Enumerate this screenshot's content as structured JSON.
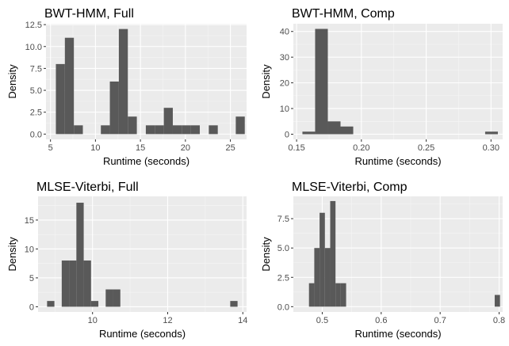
{
  "figure": {
    "background": "#ffffff",
    "panel_background": "#ebebeb",
    "grid_major": "#ffffff",
    "grid_minor": "#f5f5f5",
    "bar_color": "#595959",
    "tick_label_color": "#4d4d4d"
  },
  "chart_data": [
    {
      "type": "bar",
      "title": "BWT-HMM, Full",
      "xlabel": "Runtime (seconds)",
      "ylabel": "Density",
      "grid": true,
      "xlim": [
        4.5,
        26.8
      ],
      "ylim": [
        -0.6,
        12.6
      ],
      "xticks": [
        5,
        10,
        15,
        20,
        25
      ],
      "xtick_labels": [
        "5",
        "10",
        "15",
        "20",
        "25"
      ],
      "yticks": [
        0,
        2.5,
        5,
        7.5,
        10,
        12.5
      ],
      "ytick_labels": [
        "0.0",
        "2.5",
        "5.0",
        "7.5",
        "10.0",
        "12.5"
      ],
      "bins": [
        {
          "x0": 5.6,
          "x1": 6.6,
          "value": 8
        },
        {
          "x0": 6.6,
          "x1": 7.6,
          "value": 11
        },
        {
          "x0": 7.6,
          "x1": 8.6,
          "value": 1
        },
        {
          "x0": 10.6,
          "x1": 11.6,
          "value": 1
        },
        {
          "x0": 11.6,
          "x1": 12.6,
          "value": 6
        },
        {
          "x0": 12.6,
          "x1": 13.6,
          "value": 12
        },
        {
          "x0": 13.6,
          "x1": 14.6,
          "value": 2
        },
        {
          "x0": 15.6,
          "x1": 16.6,
          "value": 1
        },
        {
          "x0": 16.6,
          "x1": 17.6,
          "value": 1
        },
        {
          "x0": 17.6,
          "x1": 18.6,
          "value": 3
        },
        {
          "x0": 18.6,
          "x1": 19.6,
          "value": 1
        },
        {
          "x0": 19.6,
          "x1": 20.6,
          "value": 1
        },
        {
          "x0": 20.6,
          "x1": 21.6,
          "value": 1
        },
        {
          "x0": 22.6,
          "x1": 23.6,
          "value": 1
        },
        {
          "x0": 25.6,
          "x1": 26.6,
          "value": 2
        }
      ]
    },
    {
      "type": "bar",
      "title": "BWT-HMM, Comp",
      "xlabel": "Runtime (seconds)",
      "ylabel": "Density",
      "grid": true,
      "xlim": [
        0.1475,
        0.309
      ],
      "ylim": [
        -2,
        43
      ],
      "xticks": [
        0.15,
        0.2,
        0.25,
        0.3
      ],
      "xtick_labels": [
        "0.15",
        "0.20",
        "0.25",
        "0.30"
      ],
      "yticks": [
        0,
        10,
        20,
        30,
        40
      ],
      "ytick_labels": [
        "0",
        "10",
        "20",
        "30",
        "40"
      ],
      "bins": [
        {
          "x0": 0.1545,
          "x1": 0.1643,
          "value": 1
        },
        {
          "x0": 0.1643,
          "x1": 0.1741,
          "value": 41
        },
        {
          "x0": 0.1741,
          "x1": 0.1839,
          "value": 5
        },
        {
          "x0": 0.1839,
          "x1": 0.1937,
          "value": 3
        },
        {
          "x0": 0.2955,
          "x1": 0.3053,
          "value": 1
        }
      ]
    },
    {
      "type": "bar",
      "title": "MLSE-Viterbi, Full",
      "xlabel": "Runtime (seconds)",
      "ylabel": "Density",
      "grid": true,
      "xlim": [
        8.55,
        14.1
      ],
      "ylim": [
        -0.9,
        19.1
      ],
      "xticks": [
        10,
        12,
        14
      ],
      "xtick_labels": [
        "10",
        "12",
        "14"
      ],
      "yticks": [
        0,
        5,
        10,
        15
      ],
      "ytick_labels": [
        "0",
        "5",
        "10",
        "15"
      ],
      "bins": [
        {
          "x0": 8.79,
          "x1": 8.985,
          "value": 1
        },
        {
          "x0": 9.18,
          "x1": 9.375,
          "value": 8
        },
        {
          "x0": 9.375,
          "x1": 9.57,
          "value": 8
        },
        {
          "x0": 9.57,
          "x1": 9.765,
          "value": 18
        },
        {
          "x0": 9.765,
          "x1": 9.96,
          "value": 8
        },
        {
          "x0": 9.96,
          "x1": 10.155,
          "value": 1
        },
        {
          "x0": 10.35,
          "x1": 10.545,
          "value": 3
        },
        {
          "x0": 10.545,
          "x1": 10.74,
          "value": 3
        },
        {
          "x0": 13.665,
          "x1": 13.86,
          "value": 1
        }
      ]
    },
    {
      "type": "bar",
      "title": "MLSE-Viterbi, Comp",
      "xlabel": "Runtime (seconds)",
      "ylabel": "Density",
      "grid": true,
      "xlim": [
        0.451,
        0.806
      ],
      "ylim": [
        -0.45,
        9.4
      ],
      "xticks": [
        0.5,
        0.6,
        0.7,
        0.8
      ],
      "xtick_labels": [
        "0.5",
        "0.6",
        "0.7",
        "0.8"
      ],
      "yticks": [
        0,
        2.5,
        5,
        7.5
      ],
      "ytick_labels": [
        "0.0",
        "2.5",
        "5.0",
        "7.5"
      ],
      "bins": [
        {
          "x0": 0.4775,
          "x1": 0.4865,
          "value": 2
        },
        {
          "x0": 0.4865,
          "x1": 0.4955,
          "value": 5
        },
        {
          "x0": 0.4955,
          "x1": 0.5045,
          "value": 8
        },
        {
          "x0": 0.5045,
          "x1": 0.5135,
          "value": 5
        },
        {
          "x0": 0.5135,
          "x1": 0.5225,
          "value": 9
        },
        {
          "x0": 0.5225,
          "x1": 0.5315,
          "value": 2
        },
        {
          "x0": 0.5315,
          "x1": 0.5405,
          "value": 2
        },
        {
          "x0": 0.7925,
          "x1": 0.8015,
          "value": 1
        }
      ]
    }
  ]
}
